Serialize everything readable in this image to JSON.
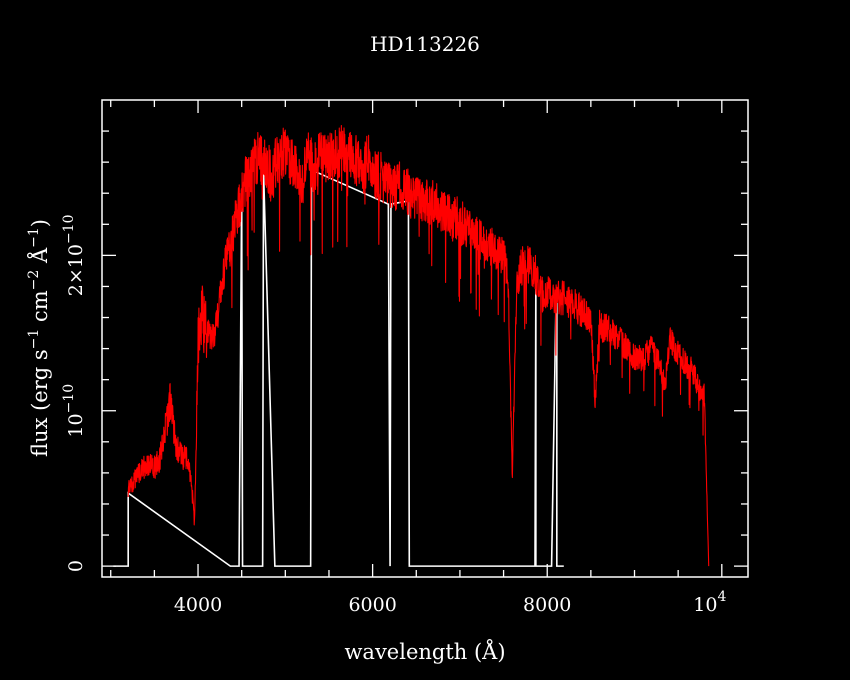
{
  "chart_data": {
    "type": "line",
    "title": "HD113226",
    "xlabel": "wavelength (Å)",
    "ylabel": "flux (erg s⁻¹ cm⁻² Å⁻¹)",
    "ylabel_parts": {
      "w1": "flux (erg s",
      "e1": "−1",
      "w2": " cm",
      "e2": "−2",
      "w3": " Å",
      "e3": "−1",
      "w4": ")"
    },
    "xlim": [
      2900,
      10300
    ],
    "ylim": [
      -7e-12,
      3e-10
    ],
    "x_ticks": [
      {
        "value": 4000,
        "label": "4000"
      },
      {
        "value": 6000,
        "label": "6000"
      },
      {
        "value": 8000,
        "label": "8000"
      }
    ],
    "x_tick_end": {
      "value": 10000,
      "base": "10",
      "exp": "4"
    },
    "y_ticks": [
      {
        "value": 0,
        "label": "0"
      },
      {
        "value": 1e-10,
        "mantissa": "",
        "base": "10",
        "exp": "−10"
      },
      {
        "value": 2e-10,
        "mantissa": "2×",
        "base": "10",
        "exp": "−10"
      }
    ],
    "series": [
      {
        "color": "#ff0000",
        "x": [
          3200,
          3280,
          3350,
          3420,
          3500,
          3560,
          3620,
          3680,
          3720,
          3760,
          3820,
          3880,
          3930,
          3960,
          4000,
          4050,
          4100,
          4150,
          4200,
          4260,
          4320,
          4380,
          4420,
          4460,
          4500,
          4550,
          4600,
          4650,
          4700,
          4750,
          4800,
          4850,
          4900,
          4950,
          5000,
          5050,
          5100,
          5150,
          5200,
          5250,
          5300,
          5350,
          5400,
          5450,
          5500,
          5550,
          5600,
          5650,
          5700,
          5750,
          5800,
          5850,
          5900,
          5950,
          6000,
          6050,
          6100,
          6150,
          6200,
          6250,
          6300,
          6350,
          6400,
          6450,
          6500,
          6550,
          6600,
          6650,
          6700,
          6750,
          6800,
          6850,
          6900,
          6950,
          7000,
          7100,
          7200,
          7300,
          7400,
          7500,
          7550,
          7600,
          7650,
          7700,
          7750,
          7800,
          7850,
          7900,
          7950,
          8000,
          8100,
          8200,
          8300,
          8400,
          8500,
          8550,
          8600,
          8700,
          8800,
          8900,
          9000,
          9100,
          9200,
          9300,
          9350,
          9400,
          9500,
          9600,
          9650,
          9700,
          9750,
          9800,
          9850
        ],
        "y": [
          4.9e-11,
          5.6e-11,
          6.1e-11,
          6.6e-11,
          6.3e-11,
          6.9e-11,
          8.9e-11,
          1.06e-10,
          8.8e-11,
          7.5e-11,
          7e-11,
          6.9e-11,
          5e-11,
          2.6e-11,
          1.45e-10,
          1.62e-10,
          1.51e-10,
          1.49e-10,
          1.52e-10,
          1.75e-10,
          1.98e-10,
          2.08e-10,
          2.21e-10,
          2.3e-10,
          2.37e-10,
          2.49e-10,
          2.52e-10,
          2.6e-10,
          2.66e-10,
          2.58e-10,
          2.57e-10,
          2.48e-10,
          2.64e-10,
          2.63e-10,
          2.67e-10,
          2.6e-10,
          2.62e-10,
          2.56e-10,
          2.48e-10,
          2.63e-10,
          2.59e-10,
          2.56e-10,
          2.65e-10,
          2.63e-10,
          2.65e-10,
          2.63e-10,
          2.66e-10,
          2.68e-10,
          2.61e-10,
          2.65e-10,
          2.61e-10,
          2.63e-10,
          2.55e-10,
          2.65e-10,
          2.56e-10,
          2.51e-10,
          2.5e-10,
          2.48e-10,
          2.43e-10,
          2.44e-10,
          2.46e-10,
          2.44e-10,
          2.42e-10,
          2.38e-10,
          2.4e-10,
          2.35e-10,
          2.38e-10,
          2.33e-10,
          2.36e-10,
          2.3e-10,
          2.27e-10,
          2.28e-10,
          2.22e-10,
          2.25e-10,
          2.21e-10,
          2.18e-10,
          2.12e-10,
          2.07e-10,
          2.03e-10,
          2e-10,
          1.88e-10,
          5.7e-11,
          1.82e-10,
          1.92e-10,
          1.95e-10,
          1.93e-10,
          1.9e-10,
          1.83e-10,
          1.74e-10,
          1.76e-10,
          1.74e-10,
          1.72e-10,
          1.69e-10,
          1.64e-10,
          1.6e-10,
          1.05e-10,
          1.55e-10,
          1.52e-10,
          1.48e-10,
          1.41e-10,
          1.35e-10,
          1.33e-10,
          1.41e-10,
          1.28e-10,
          1.15e-10,
          1.46e-10,
          1.36e-10,
          1.29e-10,
          1.27e-10,
          1.2e-10,
          1.12e-10,
          1.1e-10,
          0.0
        ],
        "noise": 0.065
      },
      {
        "color": "#ffffff",
        "x": [
          3030,
          3200,
          3200,
          4370,
          4380,
          4470,
          4500,
          4510,
          4640,
          4740,
          4750,
          4880,
          5290,
          5300,
          6180,
          6200,
          6210,
          6410,
          6420,
          6420,
          6560,
          7710,
          7860,
          7870,
          7870,
          7970,
          8050,
          8100,
          8110,
          8110,
          8190
        ],
        "y": [
          0,
          0,
          4.7e-11,
          0,
          0,
          0,
          2.42e-10,
          0,
          0,
          0,
          2.55e-10,
          0,
          0,
          2.55e-10,
          2.33e-10,
          0,
          2.33e-10,
          2.35e-10,
          0,
          0,
          0,
          0,
          0,
          1.88e-10,
          0,
          0,
          0,
          1.69e-10,
          1.69e-10,
          0,
          0
        ]
      }
    ],
    "grid": false,
    "legend": "none"
  }
}
